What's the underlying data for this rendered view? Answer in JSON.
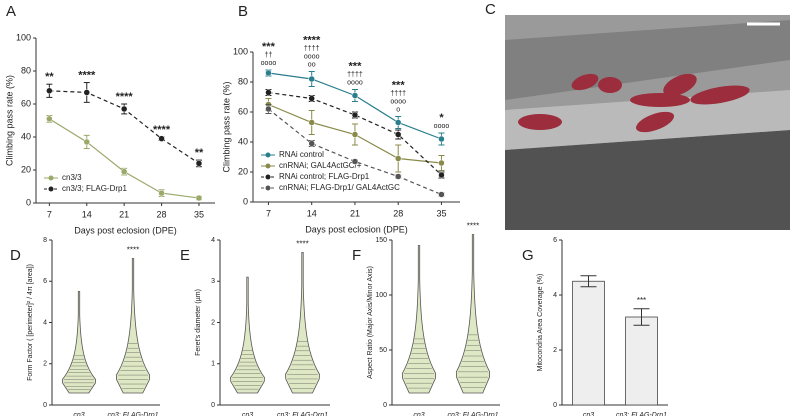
{
  "chart_data": [
    {
      "type": "line",
      "title": "A",
      "xlabel": "Days post eclosion (DPE)",
      "ylabel": "Climbing pass rate (%)",
      "x": [
        7,
        14,
        21,
        28,
        35
      ],
      "xlim": [
        4.5,
        38
      ],
      "xticks": [
        7,
        14,
        21,
        28,
        35
      ],
      "ylim": [
        0,
        100
      ],
      "yticks": [
        0,
        20,
        40,
        60,
        80,
        100
      ],
      "series": [
        {
          "name": "cn3/3",
          "color": "#9aa86a",
          "dashed": false,
          "values": [
            51,
            37,
            19,
            6,
            3
          ],
          "errors": [
            2,
            4,
            2,
            2,
            1
          ]
        },
        {
          "name": "cn3/3; FLAG-Drp1",
          "color": "#222222",
          "dashed": true,
          "values": [
            68,
            67,
            57,
            39,
            24
          ],
          "errors": [
            4,
            6,
            3,
            1,
            2
          ]
        }
      ],
      "annotations": [
        [
          "**"
        ],
        [
          "****"
        ],
        [
          "****"
        ],
        [
          "****"
        ],
        [
          "**"
        ]
      ]
    },
    {
      "type": "line",
      "title": "B",
      "xlabel": "Days post eclosion (DPE)",
      "ylabel": "Climbing pass rate (%)",
      "x": [
        7,
        14,
        21,
        28,
        35
      ],
      "xlim": [
        4.5,
        38
      ],
      "xticks": [
        7,
        14,
        21,
        28,
        35
      ],
      "ylim": [
        0,
        100
      ],
      "yticks": [
        0,
        20,
        40,
        60,
        80,
        100
      ],
      "series": [
        {
          "name": "RNAi control",
          "color": "#2a7d8c",
          "dashed": false,
          "values": [
            86,
            82,
            71,
            53,
            42
          ],
          "errors": [
            2,
            5,
            4,
            4,
            4
          ]
        },
        {
          "name": "cnRNAi; GAL4ActGC/+",
          "color": "#8a8a4a",
          "dashed": false,
          "values": [
            65,
            53,
            45,
            29,
            26
          ],
          "errors": [
            4,
            8,
            7,
            9,
            5
          ]
        },
        {
          "name": "RNAi control; FLAG-Drp1",
          "color": "#222222",
          "dashed": true,
          "values": [
            73,
            69,
            58,
            45,
            18
          ],
          "errors": [
            2,
            2,
            2,
            3,
            2
          ]
        },
        {
          "name": "cnRNAi; FLAG-Drp1/ GAL4ActGC",
          "color": "#555555",
          "dashed": true,
          "values": [
            62,
            39,
            27,
            17,
            5
          ],
          "errors": [
            3,
            2,
            1,
            1,
            1
          ]
        }
      ],
      "annotations": [
        [
          "***",
          "††",
          "oooo"
        ],
        [
          "****",
          "††††",
          "oooo",
          "oo"
        ],
        [
          "***",
          "††††",
          "oooo"
        ],
        [
          "***",
          "††††",
          "oooo",
          "o"
        ],
        [
          "*",
          "oooo"
        ]
      ]
    },
    {
      "type": "violin",
      "title": "D",
      "ylabel": "Form Factor ( [perimeter]² / 4π [area])",
      "categories": [
        "cn3",
        "cn3; FLAG-Drp1"
      ],
      "values": [
        5.5,
        7.1
      ],
      "ylim": [
        0,
        8
      ],
      "yticks": [
        0,
        2,
        4,
        6,
        8
      ],
      "annotation": "****"
    },
    {
      "type": "violin",
      "title": "E",
      "ylabel": "Feret's diameter (µm)",
      "categories": [
        "cn3",
        "cn3; FLAG-Drp1"
      ],
      "values": [
        3.1,
        3.7
      ],
      "ylim": [
        0,
        4
      ],
      "yticks": [
        0,
        1,
        2,
        3,
        4
      ],
      "annotation": "****"
    },
    {
      "type": "violin",
      "title": "F",
      "ylabel": "Aspect Ratio (Major Axis/Minor Axis)",
      "categories": [
        "cn3",
        "cn3; FLAG-Drp1"
      ],
      "values": [
        145,
        155
      ],
      "ylim": [
        0,
        150
      ],
      "yticks": [
        0,
        50,
        100,
        150
      ],
      "annotation": "****"
    },
    {
      "type": "bar",
      "title": "G",
      "ylabel": "Mitocondria Area Coverage (%)",
      "categories": [
        "cn3",
        "cn3; FLAG-Drp1"
      ],
      "values": [
        4.5,
        3.2
      ],
      "errors": [
        0.2,
        0.3
      ],
      "color": "#eeeeee",
      "ylim": [
        0,
        6
      ],
      "yticks": [
        0,
        2,
        4,
        6
      ],
      "annotation": "***"
    }
  ],
  "image": {
    "title": "C"
  }
}
